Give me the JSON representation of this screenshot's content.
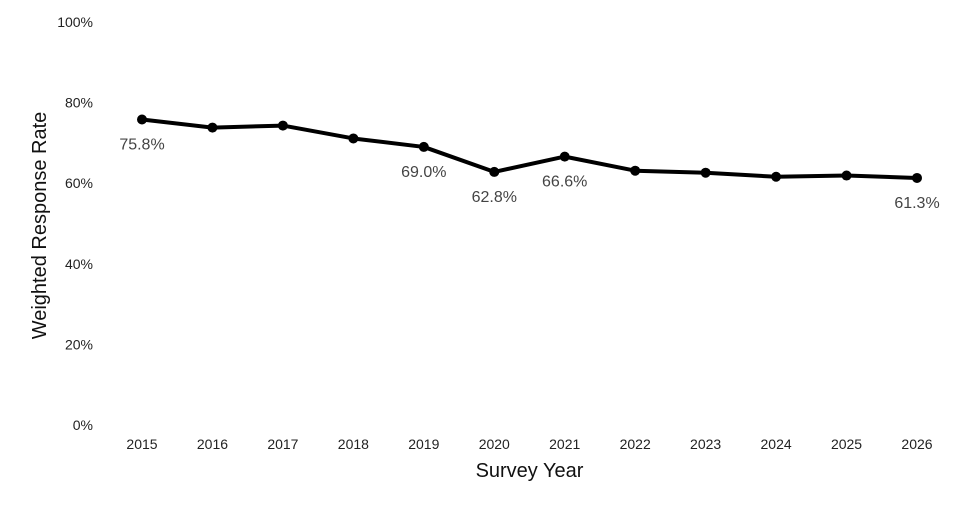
{
  "chart_data": {
    "type": "line",
    "title": "",
    "xlabel": "Survey Year",
    "ylabel": "Weighted Response Rate",
    "x": [
      "2015",
      "2016",
      "2017",
      "2018",
      "2019",
      "2020",
      "2021",
      "2022",
      "2023",
      "2024",
      "2025",
      "2026"
    ],
    "series": [
      {
        "values": [
          75.8,
          73.8,
          74.3,
          71.1,
          69.0,
          62.8,
          66.6,
          63.1,
          62.6,
          61.6,
          61.9,
          61.3
        ],
        "color": "#000000"
      }
    ],
    "ylim": [
      0,
      100
    ],
    "y_ticks": [
      0,
      20,
      40,
      60,
      80,
      100
    ],
    "y_tick_labels": [
      "0%",
      "20%",
      "40%",
      "60%",
      "80%",
      "100%"
    ],
    "data_labels": [
      {
        "x": "2015",
        "text": "75.8%"
      },
      {
        "x": "2019",
        "text": "69.0%"
      },
      {
        "x": "2020",
        "text": "62.8%"
      },
      {
        "x": "2021",
        "text": "66.6%"
      },
      {
        "x": "2026",
        "text": "61.3%"
      }
    ],
    "grid": false,
    "legend": "none"
  }
}
